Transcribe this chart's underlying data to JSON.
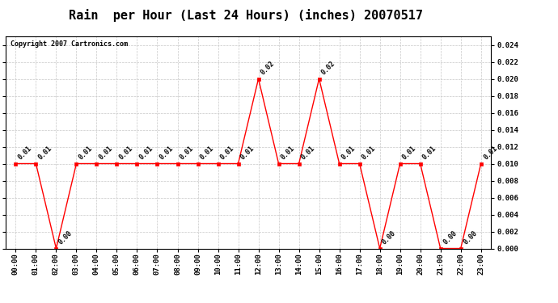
{
  "title": "Rain  per Hour (Last 24 Hours) (inches) 20070517",
  "copyright": "Copyright 2007 Cartronics.com",
  "hours": [
    "00:00",
    "01:00",
    "02:00",
    "03:00",
    "04:00",
    "05:00",
    "06:00",
    "07:00",
    "08:00",
    "09:00",
    "10:00",
    "11:00",
    "12:00",
    "13:00",
    "14:00",
    "15:00",
    "16:00",
    "17:00",
    "18:00",
    "19:00",
    "20:00",
    "21:00",
    "22:00",
    "23:00"
  ],
  "values": [
    0.01,
    0.01,
    0.0,
    0.01,
    0.01,
    0.01,
    0.01,
    0.01,
    0.01,
    0.01,
    0.01,
    0.01,
    0.02,
    0.01,
    0.01,
    0.02,
    0.01,
    0.01,
    0.0,
    0.01,
    0.01,
    0.0,
    0.0,
    0.01
  ],
  "line_color": "#FF0000",
  "marker_color": "#FF0000",
  "bg_color": "#FFFFFF",
  "grid_color": "#C8C8C8",
  "ylim": [
    0.0,
    0.025
  ],
  "ytick_values": [
    0.0,
    0.002,
    0.004,
    0.006,
    0.008,
    0.01,
    0.012,
    0.014,
    0.016,
    0.018,
    0.02,
    0.022,
    0.024
  ],
  "title_fontsize": 11,
  "annotation_fontsize": 6,
  "copyright_fontsize": 6,
  "tick_fontsize": 6.5
}
